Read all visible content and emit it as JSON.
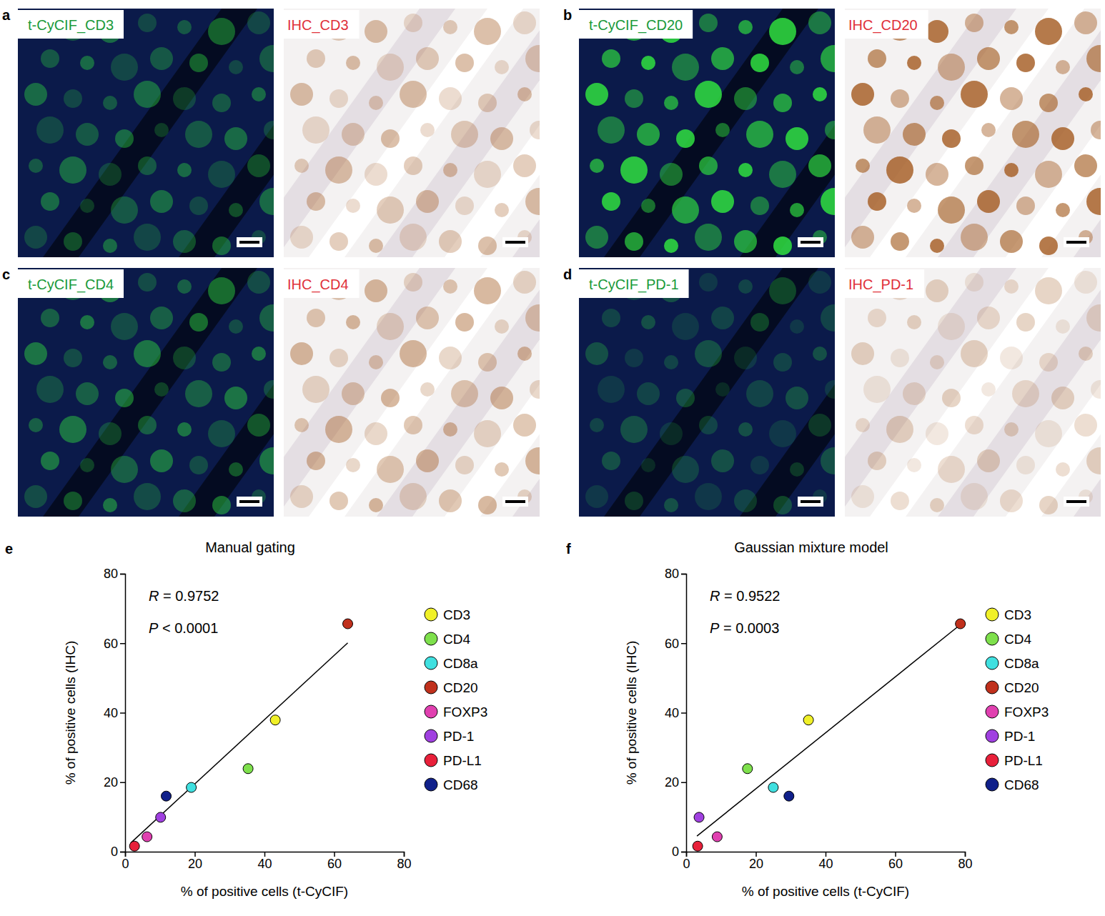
{
  "panels": [
    {
      "letter": "a",
      "left_label": "t-CyCIF_CD3",
      "right_label": "IHC_CD3"
    },
    {
      "letter": "b",
      "left_label": "t-CyCIF_CD20",
      "right_label": "IHC_CD20"
    },
    {
      "letter": "c",
      "left_label": "t-CyCIF_CD4",
      "right_label": "IHC_CD4"
    },
    {
      "letter": "d",
      "left_label": "t-CyCIF_PD-1",
      "right_label": "IHC_PD-1"
    }
  ],
  "chart_data": [
    {
      "type": "scatter",
      "panel": "e",
      "title": "Manual gating",
      "x_label": "% of positive cells (t-CyCIF)",
      "y_label": "% of positive cells (IHC)",
      "annotations": [
        "R = 0.9752",
        "P < 0.0001"
      ],
      "xlim": [
        0,
        80
      ],
      "ylim": [
        0,
        80
      ],
      "xticks": [
        0,
        20,
        40,
        60,
        80
      ],
      "yticks": [
        0,
        20,
        40,
        60,
        80
      ],
      "legend": "right",
      "series": [
        {
          "name": "CD3",
          "color": "#f0f028",
          "x": [
            43.1
          ],
          "values": [
            37.9
          ]
        },
        {
          "name": "CD4",
          "color": "#7ee04c",
          "x": [
            35.3
          ],
          "values": [
            23.9
          ]
        },
        {
          "name": "CD8a",
          "color": "#40e0e0",
          "x": [
            19.0
          ],
          "values": [
            18.5
          ]
        },
        {
          "name": "CD20",
          "color": "#c0301c",
          "x": [
            63.9
          ],
          "values": [
            65.6
          ]
        },
        {
          "name": "FOXP3",
          "color": "#e040b0",
          "x": [
            6.3
          ],
          "values": [
            4.3
          ]
        },
        {
          "name": "PD-1",
          "color": "#a040e0",
          "x": [
            10.2
          ],
          "values": [
            9.9
          ]
        },
        {
          "name": "PD-L1",
          "color": "#e8203a",
          "x": [
            2.7
          ],
          "values": [
            1.6
          ]
        },
        {
          "name": "CD68",
          "color": "#10208a",
          "x": [
            11.8
          ],
          "values": [
            16.0
          ]
        }
      ],
      "trend": {
        "x": [
          1.6,
          63.9
        ],
        "values": [
          2.5,
          60.1
        ]
      }
    },
    {
      "type": "scatter",
      "panel": "f",
      "title": "Gaussian mixture model",
      "x_label": "% of positive cells (t-CyCIF)",
      "y_label": "% of positive cells (IHC)",
      "annotations": [
        "R = 0.9522",
        "P = 0.0003"
      ],
      "xlim": [
        0,
        80
      ],
      "ylim": [
        0,
        80
      ],
      "xticks": [
        0,
        20,
        40,
        60,
        80
      ],
      "yticks": [
        0,
        20,
        40,
        60,
        80
      ],
      "legend": "right",
      "series": [
        {
          "name": "CD3",
          "color": "#f0f028",
          "x": [
            35.1
          ],
          "values": [
            37.9
          ]
        },
        {
          "name": "CD4",
          "color": "#7ee04c",
          "x": [
            17.6
          ],
          "values": [
            23.9
          ]
        },
        {
          "name": "CD8a",
          "color": "#40e0e0",
          "x": [
            25.0
          ],
          "values": [
            18.5
          ]
        },
        {
          "name": "CD20",
          "color": "#c0301c",
          "x": [
            78.7
          ],
          "values": [
            65.6
          ]
        },
        {
          "name": "FOXP3",
          "color": "#e040b0",
          "x": [
            8.9
          ],
          "values": [
            4.3
          ]
        },
        {
          "name": "PD-1",
          "color": "#a040e0",
          "x": [
            3.7
          ],
          "values": [
            9.9
          ]
        },
        {
          "name": "PD-L1",
          "color": "#e8203a",
          "x": [
            3.3
          ],
          "values": [
            1.6
          ]
        },
        {
          "name": "CD68",
          "color": "#10208a",
          "x": [
            29.5
          ],
          "values": [
            16.0
          ]
        }
      ],
      "trend": {
        "x": [
          3.1,
          78.5
        ],
        "values": [
          4.5,
          65.2
        ]
      }
    }
  ]
}
